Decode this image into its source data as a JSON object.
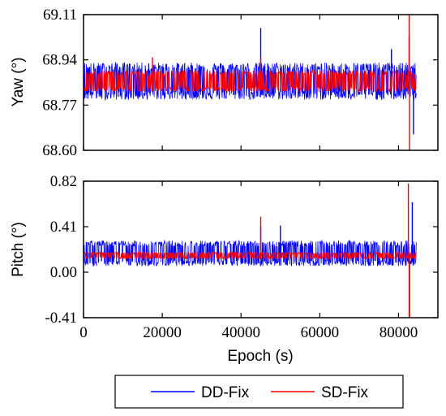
{
  "chart_data": [
    {
      "type": "line",
      "panel": "top",
      "ylabel": "Yaw (°)",
      "xlim": [
        0,
        90000
      ],
      "ylim": [
        68.6,
        69.11
      ],
      "yticks": [
        "69.11",
        "68.94",
        "68.77",
        "68.60"
      ],
      "ytick_values": [
        69.11,
        68.94,
        68.77,
        68.6
      ],
      "series": [
        {
          "name": "DD-Fix",
          "color": "#0000ff",
          "x_range": [
            0,
            84500
          ],
          "mean": 68.86,
          "noise_band": [
            68.79,
            68.93
          ],
          "spikes": [
            {
              "x": 45000,
              "y": 69.06
            },
            {
              "x": 82700,
              "y": 69.03
            },
            {
              "x": 83800,
              "y": 68.66
            },
            {
              "x": 78200,
              "y": 68.98
            }
          ]
        },
        {
          "name": "SD-Fix",
          "color": "#ff0000",
          "x_range": [
            0,
            84500
          ],
          "mean": 68.86,
          "noise_band": [
            68.82,
            68.9
          ],
          "spikes": [
            {
              "x": 17500,
              "y": 68.95
            },
            {
              "x": 45000,
              "y": 68.95
            },
            {
              "x": 82700,
              "y": 69.11
            },
            {
              "x": 82800,
              "y": 68.6
            }
          ]
        }
      ]
    },
    {
      "type": "line",
      "panel": "bottom",
      "ylabel": "Pitch (°)",
      "xlabel": "Epoch (s)",
      "xlim": [
        0,
        90000
      ],
      "xticks": [
        "0",
        "20000",
        "40000",
        "60000",
        "80000"
      ],
      "xtick_values": [
        0,
        20000,
        40000,
        60000,
        80000
      ],
      "ylim": [
        -0.41,
        0.82
      ],
      "yticks": [
        "0.82",
        "0.41",
        "0.00",
        "-0.41"
      ],
      "ytick_values": [
        0.82,
        0.41,
        0.0,
        -0.41
      ],
      "series": [
        {
          "name": "DD-Fix",
          "color": "#0000ff",
          "x_range": [
            0,
            84500
          ],
          "mean": 0.17,
          "noise_band": [
            0.06,
            0.29
          ],
          "spikes": [
            {
              "x": 45000,
              "y": 0.41
            },
            {
              "x": 50000,
              "y": 0.42
            },
            {
              "x": 83500,
              "y": 0.63
            },
            {
              "x": 82800,
              "y": -0.41
            }
          ]
        },
        {
          "name": "SD-Fix",
          "color": "#ff0000",
          "x_range": [
            0,
            84500
          ],
          "mean": 0.15,
          "noise_band": [
            0.12,
            0.18
          ],
          "spikes": [
            {
              "x": 45000,
              "y": 0.5
            },
            {
              "x": 82500,
              "y": 0.8
            },
            {
              "x": 82700,
              "y": -0.41
            }
          ]
        }
      ]
    }
  ],
  "legend": {
    "placement": "bottom",
    "items": [
      {
        "label": "DD-Fix",
        "color": "#0000ff"
      },
      {
        "label": "SD-Fix",
        "color": "#ff0000"
      }
    ]
  }
}
